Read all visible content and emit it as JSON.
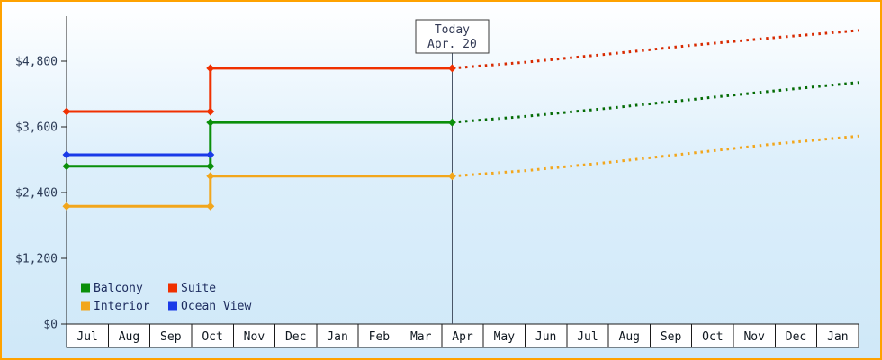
{
  "frame": {
    "border_color": "#ffa200"
  },
  "chart_data": {
    "type": "line",
    "description": "Cabin price history (solid) and forecast (dotted) by cabin type",
    "y_axis": {
      "ticks": [
        0,
        1200,
        2400,
        3600,
        4800
      ],
      "tick_labels": [
        "$0",
        "$1,200",
        "$2,400",
        "$3,600",
        "$4,800"
      ],
      "ylim": [
        0,
        5600
      ],
      "grid": false
    },
    "x_axis": {
      "months": [
        "Jul",
        "Aug",
        "Sep",
        "Oct",
        "Nov",
        "Dec",
        "Jan",
        "Feb",
        "Mar",
        "Apr",
        "May",
        "Jun",
        "Jul",
        "Aug",
        "Sep",
        "Oct",
        "Nov",
        "Dec",
        "Jan"
      ]
    },
    "today": {
      "line1": "Today",
      "line2": "Apr. 20",
      "x_month_index": 9.25
    },
    "price_jump_x_month_index": 3.45,
    "series": [
      {
        "name": "Balcony",
        "color": "#0a8f0a",
        "forecast_color": "#046b04",
        "history": [
          [
            0,
            2880
          ],
          [
            3.45,
            2880
          ],
          [
            3.45,
            3680
          ],
          [
            9.25,
            3680
          ]
        ],
        "forecast": [
          [
            9.25,
            3680
          ],
          [
            11,
            3790
          ],
          [
            13,
            3940
          ],
          [
            15,
            4100
          ],
          [
            17,
            4260
          ],
          [
            19,
            4410
          ]
        ]
      },
      {
        "name": "Suite",
        "color": "#f03000",
        "forecast_color": "#d82a00",
        "history": [
          [
            0,
            3880
          ],
          [
            3.45,
            3880
          ],
          [
            3.45,
            4670
          ],
          [
            9.25,
            4670
          ]
        ],
        "forecast": [
          [
            9.25,
            4670
          ],
          [
            11,
            4780
          ],
          [
            13,
            4930
          ],
          [
            15,
            5090
          ],
          [
            17,
            5230
          ],
          [
            19,
            5360
          ]
        ]
      },
      {
        "name": "Interior",
        "color": "#f2a61c",
        "forecast_color": "#f2a61c",
        "history": [
          [
            0,
            2150
          ],
          [
            3.45,
            2150
          ],
          [
            3.45,
            2700
          ],
          [
            9.25,
            2700
          ]
        ],
        "forecast": [
          [
            9.25,
            2700
          ],
          [
            11,
            2800
          ],
          [
            13,
            2950
          ],
          [
            15,
            3120
          ],
          [
            17,
            3290
          ],
          [
            19,
            3430
          ]
        ]
      },
      {
        "name": "Ocean View",
        "color": "#1a3ae8",
        "forecast_color": "#1a3ae8",
        "history": [
          [
            0,
            3090
          ],
          [
            3.45,
            3090
          ]
        ],
        "forecast": []
      }
    ],
    "legend": {
      "position": "bottom-left",
      "rows": [
        [
          "Balcony",
          "Suite"
        ],
        [
          "Interior",
          "Ocean View"
        ]
      ],
      "text_color": "#1c2b5e"
    },
    "axis_color": "#222222",
    "y_label_color": "#2b3a55",
    "month_label_color": "#101820",
    "today_line_color": "#4a5668",
    "today_box": {
      "fill": "#ffffff",
      "stroke": "#3a3a3a",
      "text_color": "#333a55"
    }
  }
}
